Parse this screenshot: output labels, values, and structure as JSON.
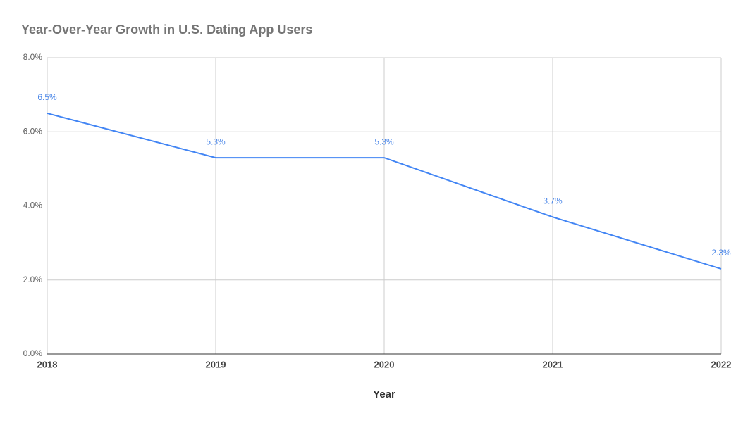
{
  "chart_data": {
    "type": "line",
    "title": "Year-Over-Year Growth in U.S. Dating App Users",
    "x_label": "Year",
    "x": [
      2018,
      2019,
      2020,
      2021,
      2022
    ],
    "xlim": [
      2018,
      2022
    ],
    "xticks": [
      2018,
      2019,
      2020,
      2021,
      2022
    ],
    "series": [
      {
        "name": "Growth",
        "color": "#4285f4",
        "values": [
          6.5,
          5.3,
          5.3,
          3.7,
          2.3
        ],
        "value_labels": [
          "6.5%",
          "5.3%",
          "5.3%",
          "3.7%",
          "2.3%"
        ]
      }
    ],
    "ylim": [
      0,
      8
    ],
    "yticks": [
      {
        "value": 0,
        "label": "0.0%"
      },
      {
        "value": 2,
        "label": "2.0%"
      },
      {
        "value": 4,
        "label": "4.0%"
      },
      {
        "value": 6,
        "label": "6.0%"
      },
      {
        "value": 8,
        "label": "8.0%"
      }
    ],
    "grid": true
  }
}
